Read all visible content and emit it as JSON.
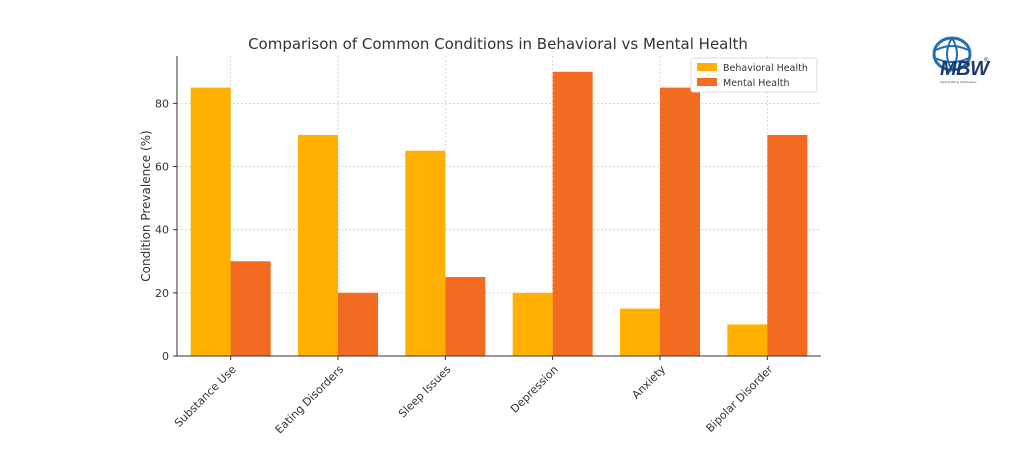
{
  "chart_data": {
    "type": "bar",
    "title": "Comparison of Common Conditions in Behavioral vs Mental Health",
    "xlabel": "",
    "ylabel": "Condition Prevalence (%)",
    "ylim": [
      0,
      95
    ],
    "yticks": [
      0,
      20,
      40,
      60,
      80
    ],
    "grid": true,
    "legend_position": "top-right",
    "categories": [
      "Substance Use",
      "Eating Disorders",
      "Sleep Issues",
      "Depression",
      "Anxiety",
      "Bipolar Disorder"
    ],
    "series": [
      {
        "name": "Behavioral Health",
        "color": "#FFB000",
        "values": [
          85,
          70,
          65,
          20,
          15,
          10
        ]
      },
      {
        "name": "Mental Health",
        "color": "#F26B21",
        "values": [
          30,
          20,
          25,
          90,
          85,
          70
        ]
      }
    ]
  },
  "logo": {
    "text": "MBW",
    "registered": "®",
    "tagline": "Medical Billing Wholesalers"
  }
}
